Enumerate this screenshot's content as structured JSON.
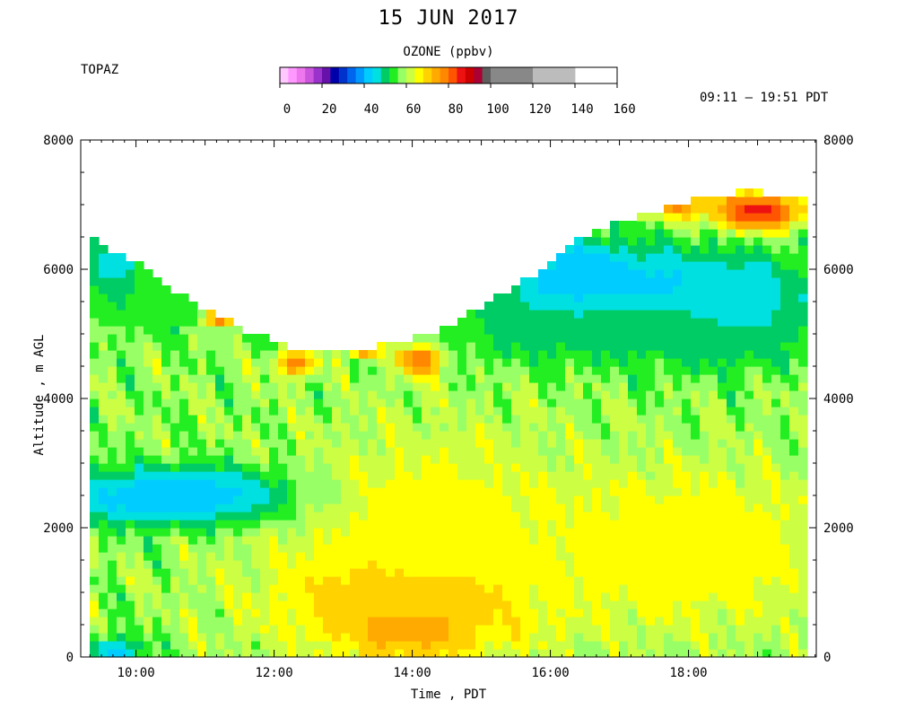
{
  "chart_data": {
    "type": "heatmap",
    "title": "15 JUN 2017",
    "station": "TOPAZ",
    "time_range": "09:11 – 19:51 PDT",
    "xlabel": "Time , PDT",
    "ylabel": "Altitude , m AGL",
    "x_ticks": [
      "10:00",
      "12:00",
      "14:00",
      "16:00",
      "18:00"
    ],
    "x_tick_hours": [
      10,
      12,
      14,
      16,
      18
    ],
    "y_ticks": [
      0,
      2000,
      4000,
      6000,
      8000
    ],
    "xlim_hours": [
      9.2,
      19.85
    ],
    "ylim": [
      0,
      8000
    ],
    "colorbar": {
      "title": "OZONE (ppbv)",
      "ticks": [
        0,
        20,
        40,
        60,
        80,
        100,
        120,
        140,
        160
      ],
      "range": [
        0,
        160
      ],
      "colors": [
        "#ffc8ff",
        "#ff99ff",
        "#ee77ee",
        "#cc55dd",
        "#9933cc",
        "#6611aa",
        "#0000aa",
        "#0033cc",
        "#0066ee",
        "#0099ff",
        "#00ccff",
        "#00e0e0",
        "#00cc66",
        "#22ee22",
        "#99ff66",
        "#ccff44",
        "#ffff00",
        "#ffd200",
        "#ffaa00",
        "#ff8800",
        "#ff5500",
        "#ee1111",
        "#cc0000",
        "#aa0033",
        "#5e5e5e",
        "#888888",
        "#bcbcbc"
      ],
      "bounds": [
        0,
        4,
        8,
        12,
        16,
        20,
        24,
        28,
        32,
        36,
        40,
        44,
        48,
        52,
        56,
        60,
        64,
        68,
        72,
        76,
        80,
        84,
        88,
        92,
        96,
        100,
        120,
        140,
        160
      ]
    },
    "ozone_field": {
      "background_ppbv": 58,
      "features": [
        {
          "time_h": 10.9,
          "alt_m": 2480,
          "width_h": 1.4,
          "height_m": 320,
          "ppbv": 32
        },
        {
          "time_h": 10.6,
          "alt_m": 2500,
          "width_h": 1.6,
          "height_m": 450,
          "ppbv": 42
        },
        {
          "time_h": 9.7,
          "alt_m": 120,
          "width_h": 0.4,
          "height_m": 200,
          "ppbv": 42
        },
        {
          "time_h": 14.0,
          "alt_m": 600,
          "width_h": 0.9,
          "height_m": 550,
          "ppbv": 82
        },
        {
          "time_h": 13.9,
          "alt_m": 900,
          "width_h": 2.0,
          "height_m": 900,
          "ppbv": 74
        },
        {
          "time_h": 18.0,
          "alt_m": 1700,
          "width_h": 2.2,
          "height_m": 1300,
          "ppbv": 68
        },
        {
          "time_h": 14.3,
          "alt_m": 2200,
          "width_h": 2.0,
          "height_m": 1400,
          "ppbv": 66
        },
        {
          "time_h": 9.7,
          "alt_m": 6050,
          "width_h": 0.5,
          "height_m": 550,
          "ppbv": 44
        },
        {
          "time_h": 10.4,
          "alt_m": 5500,
          "width_h": 1.6,
          "height_m": 500,
          "ppbv": 52
        },
        {
          "time_h": 17.3,
          "alt_m": 5700,
          "width_h": 2.4,
          "height_m": 700,
          "ppbv": 42
        },
        {
          "time_h": 16.4,
          "alt_m": 5900,
          "width_h": 0.7,
          "height_m": 500,
          "ppbv": 40
        },
        {
          "time_h": 18.6,
          "alt_m": 5300,
          "width_h": 1.0,
          "height_m": 700,
          "ppbv": 44
        },
        {
          "time_h": 17.0,
          "alt_m": 5000,
          "width_h": 2.8,
          "height_m": 500,
          "ppbv": 50
        },
        {
          "time_h": 13.3,
          "alt_m": 4800,
          "width_h": 0.2,
          "height_m": 150,
          "ppbv": 88
        },
        {
          "time_h": 14.1,
          "alt_m": 4600,
          "width_h": 0.35,
          "height_m": 250,
          "ppbv": 80
        },
        {
          "time_h": 12.3,
          "alt_m": 4550,
          "width_h": 0.3,
          "height_m": 200,
          "ppbv": 78
        },
        {
          "time_h": 11.2,
          "alt_m": 5250,
          "width_h": 0.2,
          "height_m": 120,
          "ppbv": 86
        },
        {
          "time_h": 19.0,
          "alt_m": 6900,
          "width_h": 0.7,
          "height_m": 300,
          "ppbv": 86
        },
        {
          "time_h": 17.8,
          "alt_m": 7000,
          "width_h": 0.5,
          "height_m": 200,
          "ppbv": 78
        }
      ],
      "top_boundary_m": [
        [
          9.3,
          6500
        ],
        [
          10.0,
          6100
        ],
        [
          10.8,
          5500
        ],
        [
          11.5,
          5100
        ],
        [
          12.2,
          4800
        ],
        [
          12.9,
          4700
        ],
        [
          13.6,
          4850
        ],
        [
          14.3,
          5000
        ],
        [
          15.0,
          5450
        ],
        [
          15.6,
          5800
        ],
        [
          16.3,
          6400
        ],
        [
          17.0,
          6750
        ],
        [
          17.7,
          6950
        ],
        [
          18.4,
          7150
        ],
        [
          18.8,
          7200
        ],
        [
          19.7,
          7150
        ]
      ]
    }
  }
}
